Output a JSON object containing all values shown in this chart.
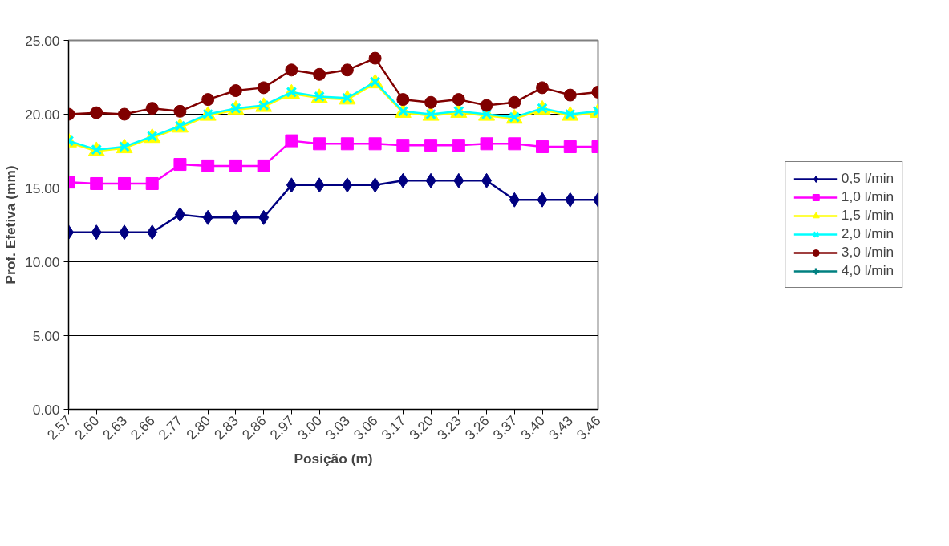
{
  "chart_data": {
    "type": "line",
    "xlabel": "Posição (m)",
    "ylabel": "Prof. Efetiva (mm)",
    "categories": [
      "2.57",
      "2.60",
      "2.63",
      "2.66",
      "2.77",
      "2.80",
      "2.83",
      "2.86",
      "2.97",
      "3.00",
      "3.03",
      "3.06",
      "3.17",
      "3.20",
      "3.23",
      "3.26",
      "3.37",
      "3.40",
      "3.43",
      "3.46"
    ],
    "ylim": [
      0,
      25
    ],
    "yticks": [
      {
        "value": 0,
        "label": "0.00"
      },
      {
        "value": 5,
        "label": "5.00"
      },
      {
        "value": 10,
        "label": "10.00"
      },
      {
        "value": 15,
        "label": "15.00"
      },
      {
        "value": 20,
        "label": "20.00"
      },
      {
        "value": 25,
        "label": "25.00"
      }
    ],
    "grid": "y",
    "legend": "right",
    "series": [
      {
        "name": "0,5 l/min",
        "color": "#000080",
        "marker": "diamond",
        "values": [
          12,
          12,
          12,
          12,
          13.2,
          13,
          13,
          13,
          15.2,
          15.2,
          15.2,
          15.2,
          15.5,
          15.5,
          15.5,
          15.5,
          14.2,
          14.2,
          14.2,
          14.2
        ]
      },
      {
        "name": "1,0 l/min",
        "color": "#ff00ff",
        "marker": "square",
        "values": [
          15.4,
          15.3,
          15.3,
          15.3,
          16.6,
          16.5,
          16.5,
          16.5,
          18.2,
          18.0,
          18.0,
          18.0,
          17.9,
          17.9,
          17.9,
          18.0,
          18.0,
          17.8,
          17.8,
          17.8
        ]
      },
      {
        "name": "1,5 l/min",
        "color": "#ffff00",
        "marker": "triangle",
        "values": [
          18.1,
          17.5,
          17.7,
          18.4,
          19.1,
          19.9,
          20.3,
          20.5,
          21.4,
          21.1,
          21.0,
          22.1,
          20.1,
          19.9,
          20.1,
          19.9,
          19.7,
          20.3,
          19.9,
          20.1
        ]
      },
      {
        "name": "2,0 l/min",
        "color": "#00ffff",
        "marker": "cross",
        "values": [
          18.2,
          17.6,
          17.8,
          18.5,
          19.2,
          20.0,
          20.4,
          20.6,
          21.5,
          21.2,
          21.1,
          22.2,
          20.2,
          20.0,
          20.2,
          20.0,
          19.8,
          20.4,
          20.0,
          20.2
        ]
      },
      {
        "name": "3,0 l/min",
        "color": "#800000",
        "marker": "circle",
        "values": [
          20.0,
          20.1,
          20.0,
          20.4,
          20.2,
          21.0,
          21.6,
          21.8,
          23.0,
          22.7,
          23.0,
          23.8,
          21.0,
          20.8,
          21.0,
          20.6,
          20.8,
          21.8,
          21.3,
          21.5
        ]
      },
      {
        "name": "4,0 l/min",
        "color": "#008080",
        "marker": "plus",
        "values": [
          null,
          null,
          null,
          null,
          null,
          null,
          null,
          null,
          null,
          null,
          null,
          null,
          null,
          null,
          null,
          null,
          null,
          null,
          null,
          null
        ]
      }
    ]
  }
}
